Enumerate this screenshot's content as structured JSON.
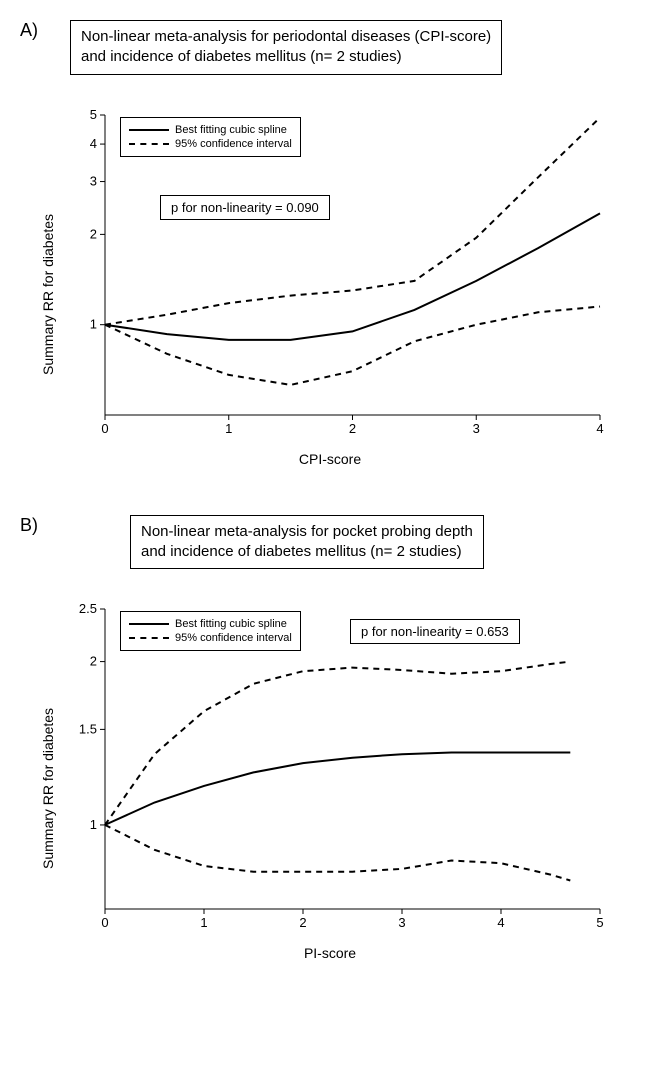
{
  "panelA": {
    "label": "A)",
    "title": "Non-linear meta-analysis for periodontal diseases (CPI-score)\nand incidence of diabetes mellitus (n= 2 studies)",
    "ylabel": "Summary RR for diabetes",
    "xlabel": "CPI-score",
    "legend": {
      "line": "Best fitting cubic spline",
      "ci": "95% confidence interval"
    },
    "annot": "p for non-linearity = 0.090",
    "chart": {
      "type": "line",
      "xlim": [
        0,
        4
      ],
      "ylim": [
        0.5,
        5
      ],
      "yticks": [
        1,
        2,
        3,
        4,
        5
      ],
      "xticks": [
        0,
        1,
        2,
        3,
        4
      ],
      "background_color": "#ffffff",
      "line_color": "#000000",
      "line_width": 2,
      "ci_dash": "6,5",
      "main": [
        [
          0,
          1.0
        ],
        [
          0.5,
          0.93
        ],
        [
          1.0,
          0.89
        ],
        [
          1.5,
          0.89
        ],
        [
          2.0,
          0.95
        ],
        [
          2.5,
          1.12
        ],
        [
          3.0,
          1.4
        ],
        [
          3.5,
          1.8
        ],
        [
          4.0,
          2.35
        ]
      ],
      "upper": [
        [
          0,
          1.0
        ],
        [
          0.5,
          1.08
        ],
        [
          1.0,
          1.18
        ],
        [
          1.5,
          1.25
        ],
        [
          2.0,
          1.3
        ],
        [
          2.5,
          1.4
        ],
        [
          3.0,
          1.95
        ],
        [
          3.5,
          3.1
        ],
        [
          4.0,
          4.9
        ]
      ],
      "lower": [
        [
          0,
          1.0
        ],
        [
          0.5,
          0.8
        ],
        [
          1.0,
          0.68
        ],
        [
          1.5,
          0.63
        ],
        [
          2.0,
          0.7
        ],
        [
          2.5,
          0.88
        ],
        [
          3.0,
          1.0
        ],
        [
          3.5,
          1.1
        ],
        [
          4.0,
          1.15
        ]
      ]
    }
  },
  "panelB": {
    "label": "B)",
    "title": "Non-linear meta-analysis for pocket probing depth\nand incidence of diabetes mellitus (n= 2 studies)",
    "ylabel": "Summary RR for diabetes",
    "xlabel": "PI-score",
    "legend": {
      "line": "Best fitting cubic spline",
      "ci": "95% confidence interval"
    },
    "annot": "p for non-linearity =  0.653",
    "chart": {
      "type": "line",
      "xlim": [
        0,
        5
      ],
      "ylim": [
        0.7,
        2.5
      ],
      "yticks": [
        1,
        1.5,
        2,
        2.5
      ],
      "xticks": [
        0,
        1,
        2,
        3,
        4,
        5
      ],
      "background_color": "#ffffff",
      "line_color": "#000000",
      "line_width": 2,
      "ci_dash": "6,5",
      "main": [
        [
          0,
          1.0
        ],
        [
          0.5,
          1.1
        ],
        [
          1.0,
          1.18
        ],
        [
          1.5,
          1.25
        ],
        [
          2.0,
          1.3
        ],
        [
          2.5,
          1.33
        ],
        [
          3.0,
          1.35
        ],
        [
          3.5,
          1.36
        ],
        [
          4.0,
          1.36
        ],
        [
          4.5,
          1.36
        ],
        [
          4.7,
          1.36
        ]
      ],
      "upper": [
        [
          0,
          1.0
        ],
        [
          0.5,
          1.35
        ],
        [
          1.0,
          1.62
        ],
        [
          1.5,
          1.82
        ],
        [
          2.0,
          1.92
        ],
        [
          2.5,
          1.95
        ],
        [
          3.0,
          1.93
        ],
        [
          3.5,
          1.9
        ],
        [
          4.0,
          1.92
        ],
        [
          4.5,
          1.98
        ],
        [
          4.7,
          2.0
        ]
      ],
      "lower": [
        [
          0,
          1.0
        ],
        [
          0.5,
          0.9
        ],
        [
          1.0,
          0.84
        ],
        [
          1.5,
          0.82
        ],
        [
          2.0,
          0.82
        ],
        [
          2.5,
          0.82
        ],
        [
          3.0,
          0.83
        ],
        [
          3.5,
          0.86
        ],
        [
          4.0,
          0.85
        ],
        [
          4.5,
          0.81
        ],
        [
          4.7,
          0.79
        ]
      ]
    }
  }
}
